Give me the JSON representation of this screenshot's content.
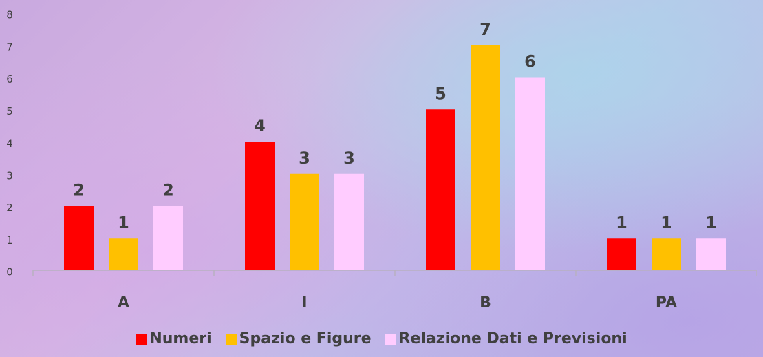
{
  "chart_data": {
    "type": "bar",
    "categories": [
      "A",
      "I",
      "B",
      "PA"
    ],
    "series": [
      {
        "name": "Numeri",
        "color": "#ff0000",
        "values": [
          2,
          4,
          5,
          1
        ]
      },
      {
        "name": "Spazio e Figure",
        "color": "#ffc000",
        "values": [
          1,
          3,
          7,
          1
        ]
      },
      {
        "name": "Relazione Dati e Previsioni",
        "color": "#ffccff",
        "values": [
          2,
          3,
          6,
          1
        ]
      }
    ],
    "ylim": [
      0,
      8
    ],
    "yticks": [
      0,
      1,
      2,
      3,
      4,
      5,
      6,
      7,
      8
    ],
    "grid": false,
    "legend": "bottom"
  }
}
